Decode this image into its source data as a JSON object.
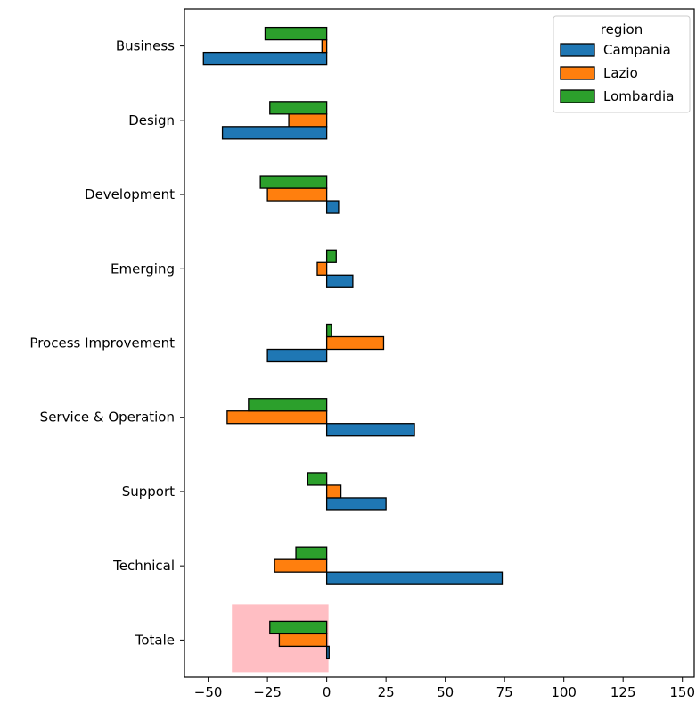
{
  "chart_data": {
    "type": "bar",
    "orientation": "horizontal",
    "categories": [
      "Business",
      "Design",
      "Development",
      "Emerging",
      "Process Improvement",
      "Service & Operation",
      "Support",
      "Technical",
      "Totale"
    ],
    "series": [
      {
        "name": "Campania",
        "color": "#1f77b4",
        "values": [
          -52,
          -44,
          5,
          11,
          -25,
          37,
          25,
          74,
          1
        ]
      },
      {
        "name": "Lazio",
        "color": "#ff7f0e",
        "values": [
          -2,
          -16,
          -25,
          -4,
          24,
          -42,
          6,
          -22,
          -20
        ]
      },
      {
        "name": "Lombardia",
        "color": "#2ca02c",
        "values": [
          -26,
          -24,
          -28,
          4,
          2,
          -33,
          -8,
          -13,
          -24
        ]
      }
    ],
    "xlim": [
      -60,
      155
    ],
    "xticks": [
      -50,
      -25,
      0,
      25,
      50,
      75,
      100,
      125,
      150
    ],
    "xtick_labels": [
      "−50",
      "−25",
      "0",
      "25",
      "50",
      "75",
      "100",
      "125",
      "150"
    ],
    "legend": {
      "title": "region",
      "placement": "top-right"
    },
    "highlight": {
      "category": "Totale",
      "x_range": [
        -40,
        0
      ],
      "color": "#ffb3b8",
      "opacity": 0.85
    },
    "grid": false
  }
}
